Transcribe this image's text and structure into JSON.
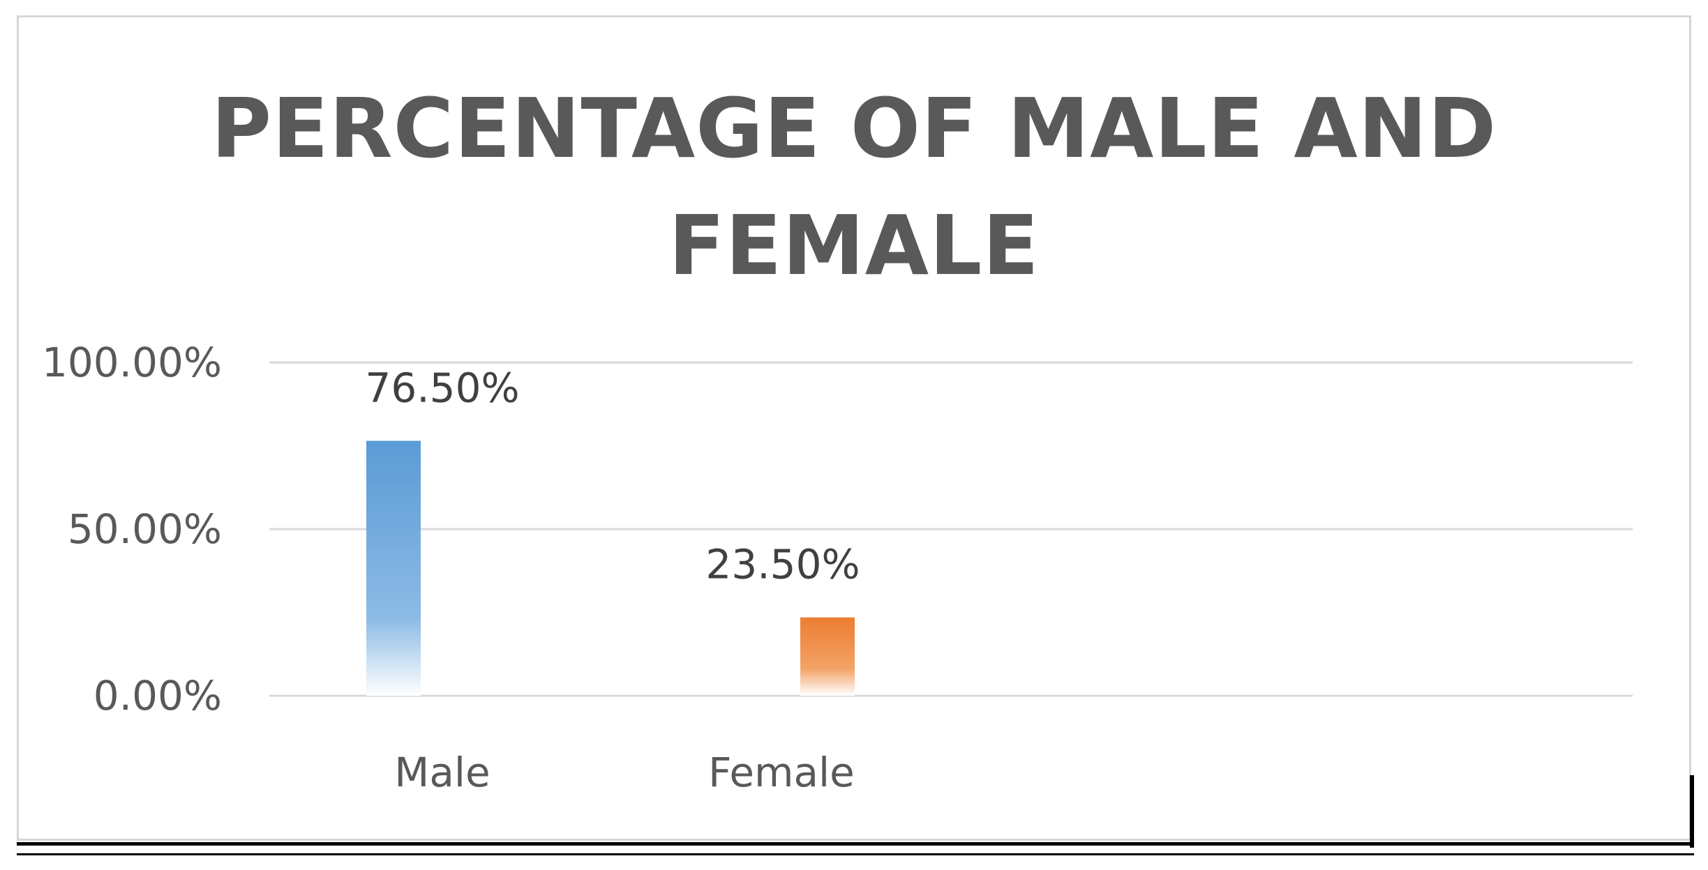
{
  "chart_data": {
    "type": "bar",
    "title": "PERCENTAGE OF MALE AND FEMALE",
    "categories": [
      "Male",
      "Female"
    ],
    "values": [
      76.5,
      23.5
    ],
    "data_labels": [
      "76.50%",
      "23.50%"
    ],
    "yticks": [
      "0.00%",
      "50.00%",
      "100.00%"
    ],
    "ylim": [
      0,
      100
    ],
    "xlabel": "",
    "ylabel": "",
    "grid": true,
    "legend": "none",
    "colors": [
      "#5b9bd5",
      "#ed7d31"
    ]
  }
}
